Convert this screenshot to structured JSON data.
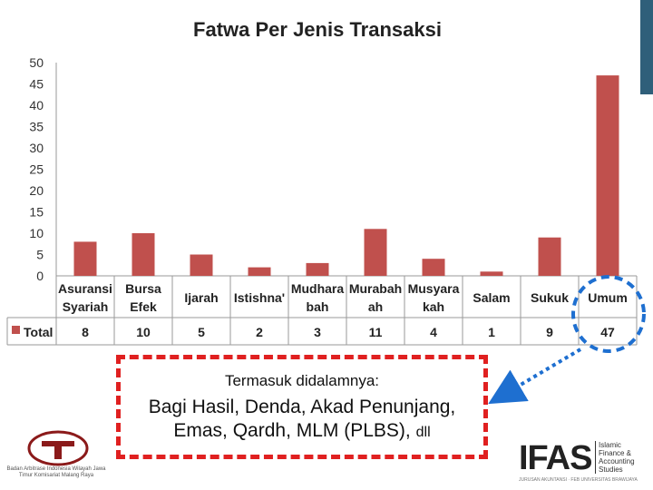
{
  "chart_data": {
    "type": "bar",
    "title": "Fatwa Per Jenis Transaksi",
    "categories": [
      [
        "Asuransi",
        "Syariah"
      ],
      [
        "Bursa",
        "Efek"
      ],
      [
        "Ijarah"
      ],
      [
        "Istishna'"
      ],
      [
        "Mudhara",
        "bah"
      ],
      [
        "Murabah",
        "ah"
      ],
      [
        "Musyara",
        "kah"
      ],
      [
        "Salam"
      ],
      [
        "Sukuk"
      ],
      [
        "Umum"
      ]
    ],
    "series": [
      {
        "name": "Total",
        "values": [
          8,
          10,
          5,
          2,
          3,
          11,
          4,
          1,
          9,
          47
        ],
        "color": "#c0504d"
      }
    ],
    "ylim": [
      0,
      50
    ],
    "yticks": [
      0,
      5,
      10,
      15,
      20,
      25,
      30,
      35,
      40,
      45,
      50
    ],
    "grid": false,
    "data_table": true,
    "highlight_category": "Umum"
  },
  "callout": {
    "line1": "Termasuk didalamnya:",
    "line2": "Bagi Hasil, Denda, Akad Penunjang,",
    "line3": "Emas, Qardh, MLM (PLBS),",
    "line3_small": "dll"
  },
  "logo_left": {
    "caption": "Badan Arbitrase Indonesia Wilayah Jawa Timur Komisariat Malang Raya"
  },
  "logo_right": {
    "word": "IFAS",
    "tagline": "Islamic Finance & Accounting Studies",
    "footer": "JURUSAN AKUNTANSI · FEB UNIVERSITAS BRAWIJAYA"
  },
  "colors": {
    "accent": "#2f5f7a",
    "callout_border": "#e02020",
    "circle": "#1e6fd0"
  }
}
